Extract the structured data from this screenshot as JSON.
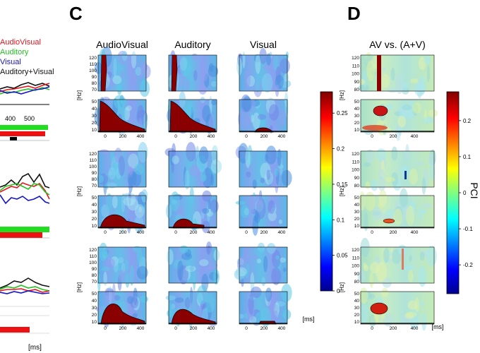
{
  "figure": {
    "panel_labels": [
      "C",
      "D"
    ],
    "legend": {
      "entries": [
        {
          "label": "AudioVisual",
          "color": "#e8141e"
        },
        {
          "label": "Auditory",
          "color": "#22c322"
        },
        {
          "label": "Visual",
          "color": "#1515c8"
        },
        {
          "label": "Auditory+Visual",
          "color": "#111111"
        }
      ]
    },
    "left_panels": {
      "x_ticks": [
        "400",
        "500"
      ],
      "x_unit": "[ms]",
      "bar_colors": {
        "green": "#22dd22",
        "red": "#ee1111",
        "black": "#000000"
      }
    },
    "panel_C": {
      "column_titles": [
        "AudioVisual",
        "Auditory",
        "Visual"
      ],
      "y_unit": "[Hz]",
      "x_unit": "[ms]",
      "upper_y_ticks": [
        "120",
        "110",
        "100",
        "90",
        "80",
        "70"
      ],
      "lower_y_ticks": [
        "50",
        "40",
        "30",
        "20",
        "10"
      ],
      "x_ticks": [
        "0",
        "200",
        "400"
      ]
    },
    "panel_D": {
      "title": "AV vs. (A+V)",
      "y_unit": "[Hz]",
      "x_unit": "[ms]",
      "upper_y_ticks": [
        "120",
        "110",
        "100",
        "90",
        "80"
      ],
      "lower_y_ticks": [
        "50",
        "40",
        "30",
        "20",
        "10"
      ],
      "x_ticks": [
        "0",
        "200",
        "400"
      ]
    },
    "colorbar_C": {
      "ticks": [
        "0.25",
        "0.2",
        "0.15",
        "0.1",
        "0.05",
        "0"
      ],
      "tick_values": [
        0.25,
        0.2,
        0.15,
        0.1,
        0.05,
        0
      ],
      "range": [
        0,
        0.28
      ],
      "colormap": "jet"
    },
    "colorbar_D": {
      "label": "PCI",
      "ticks": [
        "0.2",
        "0.1",
        "0",
        "-0.1",
        "-0.2"
      ],
      "tick_values": [
        0.2,
        0.1,
        0,
        -0.1,
        -0.2
      ],
      "range": [
        -0.28,
        0.28
      ],
      "colormap": "jet"
    }
  }
}
